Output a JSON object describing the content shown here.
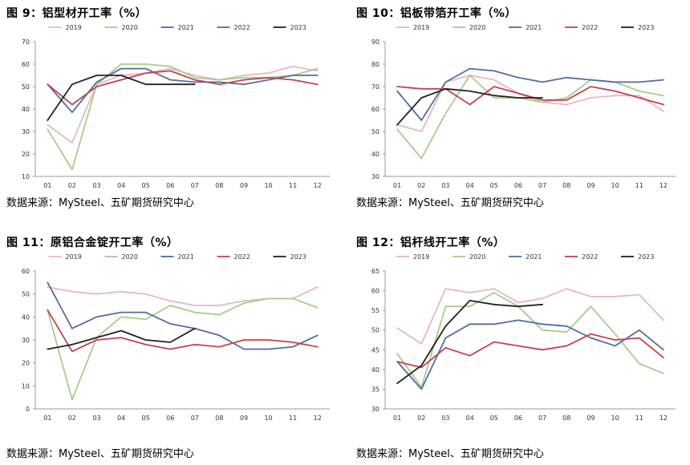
{
  "source_label": "数据来源：MySteel、五矿期货研究中心",
  "colors": {
    "2019": "#E6B7C3",
    "2020": "#A9CC8B",
    "2021": "#4F6EA0",
    "2022": "#C0434F",
    "2023": "#222222",
    "axis": "#999999"
  },
  "chart_data": [
    {
      "type": "line",
      "title": "图 9：铝型材开工率（%）",
      "x": [
        "01",
        "02",
        "03",
        "04",
        "05",
        "06",
        "07",
        "08",
        "09",
        "10",
        "11",
        "12"
      ],
      "ylim": [
        10,
        70
      ],
      "yticks": [
        10,
        20,
        30,
        40,
        50,
        60,
        70
      ],
      "legend_position": "top",
      "series": [
        {
          "name": "2019",
          "values": [
            33,
            25,
            51,
            55,
            56,
            58,
            55,
            53,
            55,
            56,
            59,
            57
          ]
        },
        {
          "name": "2020",
          "values": [
            31,
            13,
            51,
            60,
            60,
            59,
            54,
            53,
            54,
            54,
            55,
            58
          ]
        },
        {
          "name": "2021",
          "values": [
            51,
            38.5,
            52,
            58,
            58,
            53,
            52,
            52,
            51,
            53,
            55,
            55
          ]
        },
        {
          "name": "2022",
          "values": [
            51,
            42,
            50,
            53,
            56,
            57,
            53,
            51,
            53,
            54,
            53,
            51
          ]
        },
        {
          "name": "2023",
          "values": [
            35,
            51,
            55,
            55,
            51,
            51,
            51,
            null,
            null,
            null,
            null,
            null
          ]
        }
      ]
    },
    {
      "type": "line",
      "title": "图 10：铝板带箔开工率（%）",
      "x": [
        "01",
        "02",
        "03",
        "04",
        "05",
        "06",
        "07",
        "08",
        "09",
        "10",
        "11",
        "12"
      ],
      "ylim": [
        30,
        90
      ],
      "yticks": [
        30,
        40,
        50,
        60,
        70,
        80,
        90
      ],
      "legend_position": "top",
      "series": [
        {
          "name": "2019",
          "values": [
            53,
            50,
            72,
            75,
            73,
            67,
            63,
            62,
            65,
            66,
            66,
            59
          ]
        },
        {
          "name": "2020",
          "values": [
            51,
            38,
            58,
            75,
            65,
            65,
            63,
            65,
            73,
            72,
            68,
            66
          ]
        },
        {
          "name": "2021",
          "values": [
            68,
            55,
            72,
            78,
            77,
            74,
            72,
            74,
            73,
            72,
            72,
            73
          ]
        },
        {
          "name": "2022",
          "values": [
            70,
            69,
            69,
            62,
            70,
            67,
            64,
            64,
            70,
            68,
            65,
            62
          ]
        },
        {
          "name": "2023",
          "values": [
            53,
            65,
            69,
            68,
            66,
            65,
            65,
            null,
            null,
            null,
            null,
            null
          ]
        }
      ]
    },
    {
      "type": "line",
      "title": "图 11：原铝合金锭开工率（%）",
      "x": [
        "01",
        "02",
        "03",
        "04",
        "05",
        "06",
        "07",
        "08",
        "09",
        "10",
        "11",
        "12"
      ],
      "ylim": [
        0,
        60
      ],
      "yticks": [
        0,
        10,
        20,
        30,
        40,
        50,
        60
      ],
      "legend_position": "top",
      "series": [
        {
          "name": "2019",
          "values": [
            53,
            51,
            50,
            51,
            50,
            47,
            45,
            45,
            47,
            48,
            48,
            53
          ]
        },
        {
          "name": "2020",
          "values": [
            43,
            4,
            31,
            40,
            39,
            45,
            42,
            41,
            46,
            48,
            48,
            44
          ]
        },
        {
          "name": "2021",
          "values": [
            55,
            35,
            40,
            42,
            42,
            37,
            35,
            32,
            26,
            26,
            27,
            32
          ]
        },
        {
          "name": "2022",
          "values": [
            43,
            25,
            30,
            31,
            28,
            26,
            28,
            27,
            30,
            30,
            29,
            27
          ]
        },
        {
          "name": "2023",
          "values": [
            26,
            28,
            31,
            34,
            30,
            29,
            35,
            null,
            null,
            null,
            null,
            null
          ]
        }
      ]
    },
    {
      "type": "line",
      "title": "图 12：铝杆线开工率（%）",
      "x": [
        "01",
        "02",
        "03",
        "04",
        "05",
        "06",
        "07",
        "08",
        "09",
        "10",
        "11",
        "12"
      ],
      "ylim": [
        30,
        65
      ],
      "yticks": [
        30,
        35,
        40,
        45,
        50,
        55,
        60,
        65
      ],
      "legend_position": "top",
      "series": [
        {
          "name": "2019",
          "values": [
            50.5,
            46.5,
            60.5,
            59.5,
            60.5,
            57,
            58,
            60.5,
            58.5,
            58.5,
            59,
            52.5
          ]
        },
        {
          "name": "2020",
          "values": [
            44,
            35.5,
            56,
            56,
            59.5,
            56,
            50,
            49.5,
            56,
            49,
            41.5,
            39
          ]
        },
        {
          "name": "2021",
          "values": [
            42,
            35,
            48,
            51.5,
            51.5,
            52.5,
            51.5,
            51,
            48,
            46,
            50,
            45
          ]
        },
        {
          "name": "2022",
          "values": [
            42,
            40.5,
            45.5,
            43.5,
            47,
            46,
            45,
            46,
            49,
            47.5,
            48,
            43
          ]
        },
        {
          "name": "2023",
          "values": [
            36.5,
            41,
            51,
            57.5,
            56.5,
            56,
            56.5,
            null,
            null,
            null,
            null,
            null
          ]
        }
      ]
    }
  ]
}
